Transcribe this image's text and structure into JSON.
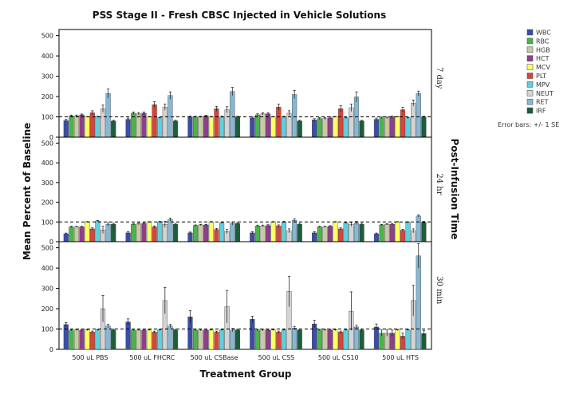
{
  "chart_data": {
    "type": "bar",
    "title": "PSS Stage II - Fresh CBSC Injected in Vehicle Solutions",
    "xlabel": "Treatment Group",
    "ylabel": "Mean Percent of Baseline",
    "facet_label": "Post-Infusion Time",
    "error_note": "Error bars: +/- 1 SE",
    "reference_line": 100,
    "ylim": [
      0,
      530
    ],
    "yticks": [
      0,
      100,
      200,
      300,
      400,
      500
    ],
    "legend_position": "top-right",
    "categories": [
      "500 uL PBS",
      "500 uL FHCRC",
      "500 uL CSBase",
      "500 uL CSS",
      "500 uL CS10",
      "500 uL HTS"
    ],
    "series_names": [
      "WBC",
      "RBC",
      "HGB",
      "HCT",
      "MCV",
      "PLT",
      "MPV",
      "NEUT",
      "RET",
      "IRF"
    ],
    "series_colors": [
      "#3a4ea6",
      "#4cb34c",
      "#c9c9a6",
      "#8e3f8c",
      "#ffff66",
      "#d8443a",
      "#5fd0de",
      "#d4d4d4",
      "#86b8d4",
      "#1d5e3a"
    ],
    "panels": [
      {
        "label": "7 day",
        "values": [
          [
            82,
            105,
            105,
            110,
            100,
            120,
            100,
            140,
            215,
            80
          ],
          [
            88,
            118,
            115,
            118,
            100,
            160,
            95,
            148,
            205,
            80
          ],
          [
            100,
            100,
            100,
            105,
            100,
            140,
            100,
            135,
            225,
            100
          ],
          [
            95,
            110,
            115,
            115,
            100,
            148,
            100,
            118,
            210,
            80
          ],
          [
            85,
            92,
            92,
            95,
            100,
            140,
            95,
            145,
            198,
            80
          ],
          [
            88,
            95,
            95,
            100,
            100,
            135,
            95,
            168,
            215,
            100
          ]
        ],
        "errors": [
          [
            6,
            4,
            4,
            4,
            2,
            10,
            3,
            18,
            22,
            3
          ],
          [
            6,
            6,
            6,
            6,
            2,
            14,
            3,
            15,
            18,
            3
          ],
          [
            4,
            3,
            3,
            3,
            2,
            12,
            3,
            15,
            20,
            3
          ],
          [
            5,
            5,
            5,
            5,
            2,
            14,
            3,
            12,
            20,
            3
          ],
          [
            6,
            5,
            5,
            5,
            2,
            15,
            3,
            18,
            25,
            3
          ],
          [
            6,
            4,
            4,
            4,
            2,
            12,
            3,
            15,
            12,
            3
          ]
        ]
      },
      {
        "label": "24 hr",
        "values": [
          [
            40,
            75,
            75,
            75,
            100,
            65,
            105,
            60,
            88,
            88
          ],
          [
            45,
            88,
            90,
            92,
            100,
            75,
            100,
            88,
            112,
            88
          ],
          [
            45,
            82,
            85,
            85,
            100,
            62,
            95,
            52,
            92,
            92
          ],
          [
            45,
            80,
            80,
            82,
            100,
            80,
            100,
            55,
            108,
            88
          ],
          [
            45,
            75,
            75,
            78,
            100,
            65,
            95,
            88,
            95,
            88
          ],
          [
            40,
            85,
            88,
            88,
            100,
            58,
            98,
            55,
            130,
            98
          ]
        ],
        "errors": [
          [
            4,
            3,
            3,
            3,
            2,
            5,
            3,
            18,
            8,
            5
          ],
          [
            5,
            4,
            4,
            4,
            2,
            5,
            3,
            15,
            8,
            5
          ],
          [
            4,
            3,
            3,
            3,
            2,
            5,
            3,
            10,
            8,
            5
          ],
          [
            5,
            4,
            4,
            4,
            2,
            5,
            3,
            10,
            8,
            5
          ],
          [
            5,
            3,
            3,
            3,
            2,
            5,
            3,
            10,
            8,
            5
          ],
          [
            4,
            3,
            3,
            3,
            2,
            5,
            3,
            10,
            5,
            5
          ]
        ]
      },
      {
        "label": "30 min",
        "values": [
          [
            122,
            95,
            95,
            95,
            95,
            85,
            95,
            200,
            115,
            95
          ],
          [
            135,
            95,
            95,
            95,
            95,
            85,
            95,
            240,
            115,
            95
          ],
          [
            160,
            95,
            95,
            95,
            95,
            85,
            95,
            210,
            95,
            95
          ],
          [
            148,
            95,
            95,
            95,
            95,
            85,
            95,
            285,
            105,
            95
          ],
          [
            125,
            95,
            95,
            95,
            95,
            85,
            95,
            188,
            110,
            95
          ],
          [
            110,
            80,
            80,
            80,
            95,
            65,
            95,
            240,
            460,
            78
          ]
        ],
        "errors": [
          [
            10,
            4,
            4,
            4,
            3,
            5,
            3,
            65,
            8,
            4
          ],
          [
            15,
            4,
            4,
            4,
            3,
            5,
            3,
            65,
            8,
            4
          ],
          [
            30,
            4,
            4,
            4,
            3,
            5,
            3,
            80,
            8,
            4
          ],
          [
            15,
            4,
            4,
            4,
            3,
            5,
            3,
            75,
            8,
            4
          ],
          [
            18,
            4,
            4,
            4,
            3,
            5,
            3,
            95,
            8,
            4
          ],
          [
            15,
            15,
            15,
            15,
            3,
            15,
            3,
            75,
            60,
            15
          ]
        ]
      }
    ]
  }
}
